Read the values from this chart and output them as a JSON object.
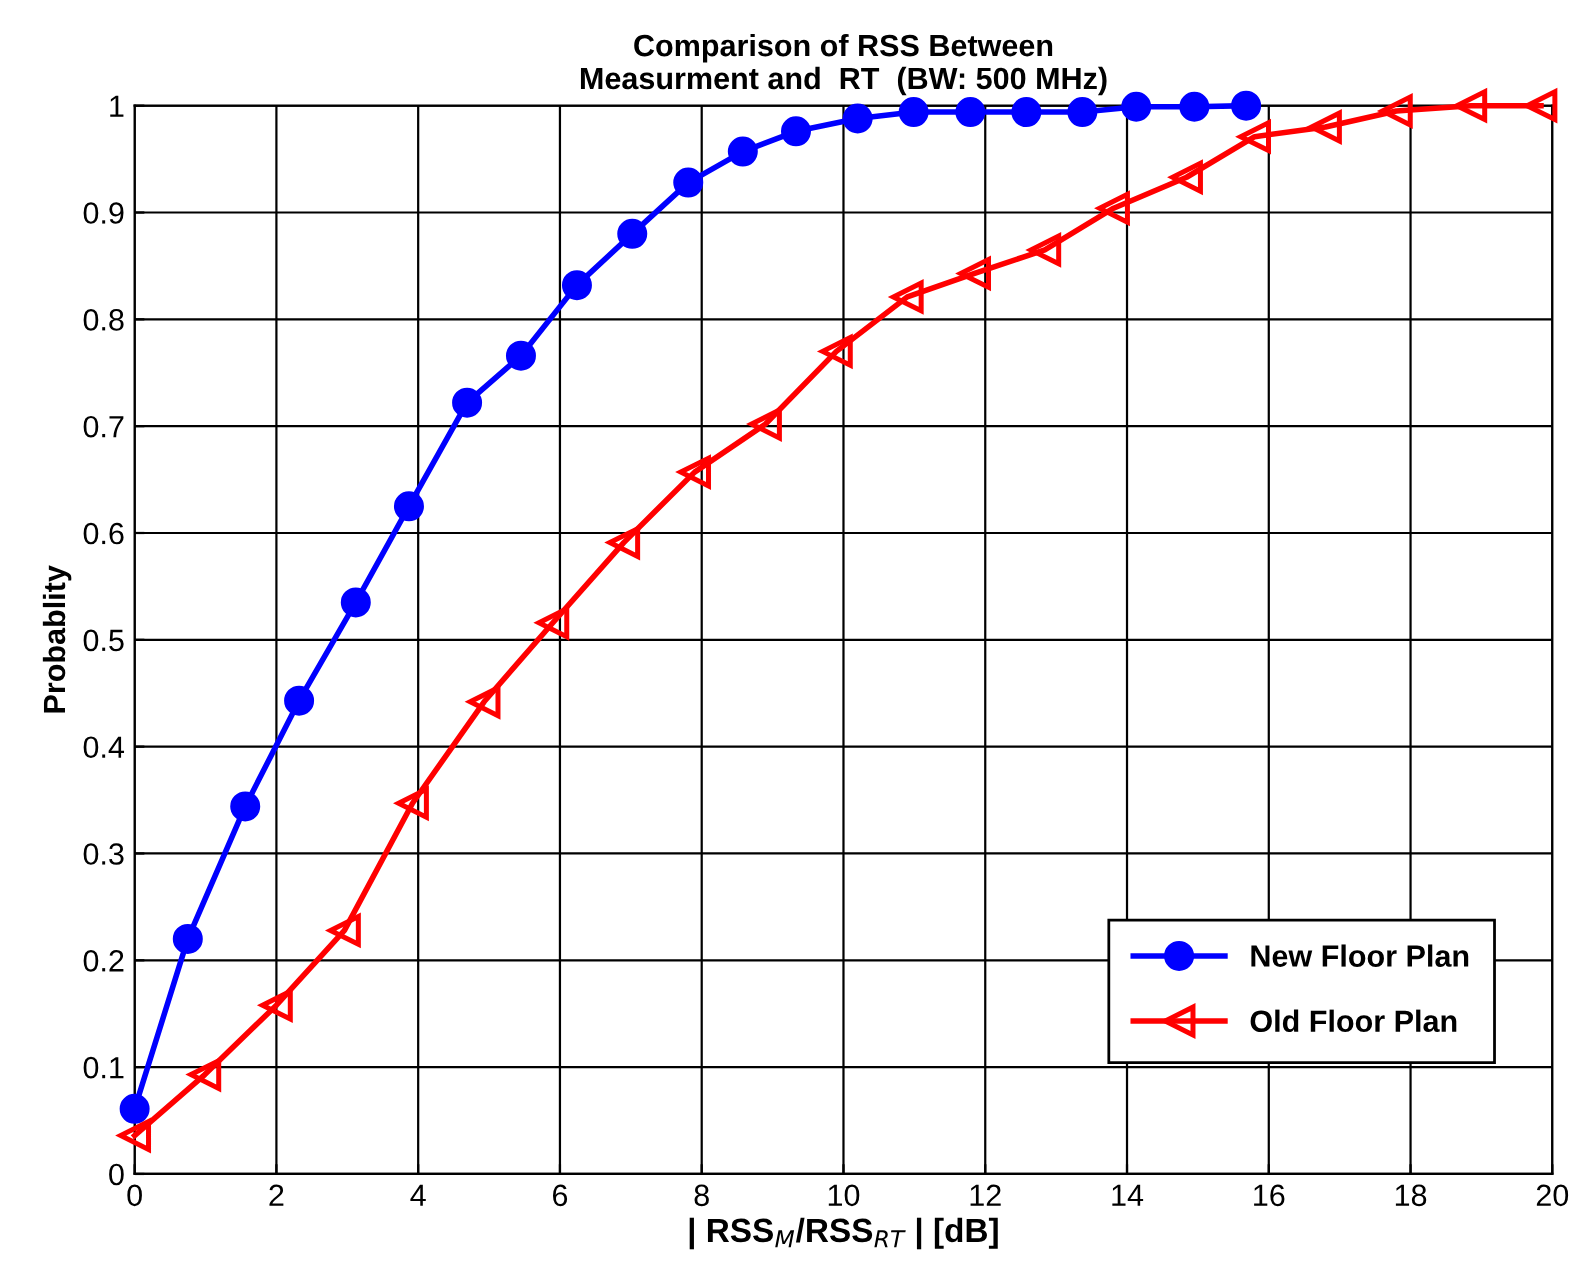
{
  "chart_data": {
    "type": "line",
    "title": "Comparison of RSS Between\nMeasurment and  RT  (BW: 500 MHz)",
    "xlabel": "| RSS$_{M}$/RSS$_{RT}$ | [dB]",
    "ylabel": "Probablity",
    "series": [
      {
        "name": "New Floor Plan",
        "color": "#0000ff",
        "marker": "circle",
        "x": [
          0,
          0.75,
          1.56,
          2.32,
          3.12,
          3.87,
          4.69,
          5.45,
          6.24,
          7.02,
          7.81,
          8.58,
          9.33,
          10.2,
          10.99,
          11.79,
          12.58,
          13.37,
          14.13,
          14.95,
          15.68
        ],
        "values": [
          0.061,
          0.22,
          0.344,
          0.443,
          0.535,
          0.625,
          0.722,
          0.766,
          0.832,
          0.88,
          0.928,
          0.957,
          0.976,
          0.988,
          0.994,
          0.994,
          0.994,
          0.994,
          0.999,
          0.999,
          1.0
        ]
      },
      {
        "name": "Old Floor Plan",
        "color": "#ff0000",
        "marker": "triangle",
        "x": [
          0,
          0.99,
          2.0,
          2.96,
          3.92,
          4.93,
          5.9,
          6.9,
          7.9,
          8.9,
          9.9,
          10.9,
          11.85,
          12.84,
          13.81,
          14.84,
          15.8,
          16.8,
          17.8,
          18.85,
          19.84
        ],
        "values": [
          0.036,
          0.093,
          0.158,
          0.228,
          0.347,
          0.442,
          0.516,
          0.591,
          0.657,
          0.702,
          0.77,
          0.821,
          0.843,
          0.865,
          0.904,
          0.933,
          0.971,
          0.98,
          0.995,
          1.0,
          1.0
        ]
      }
    ],
    "xlim": [
      0,
      20
    ],
    "xticks": [
      0,
      2,
      4,
      6,
      8,
      10,
      12,
      14,
      16,
      18,
      20
    ],
    "ylim": [
      0,
      1
    ],
    "yticks": [
      0,
      0.1,
      0.2,
      0.3,
      0.4,
      0.5,
      0.6,
      0.7,
      0.8,
      0.9,
      1
    ],
    "grid": true,
    "legend": "bottom right",
    "line_style": "solid"
  }
}
